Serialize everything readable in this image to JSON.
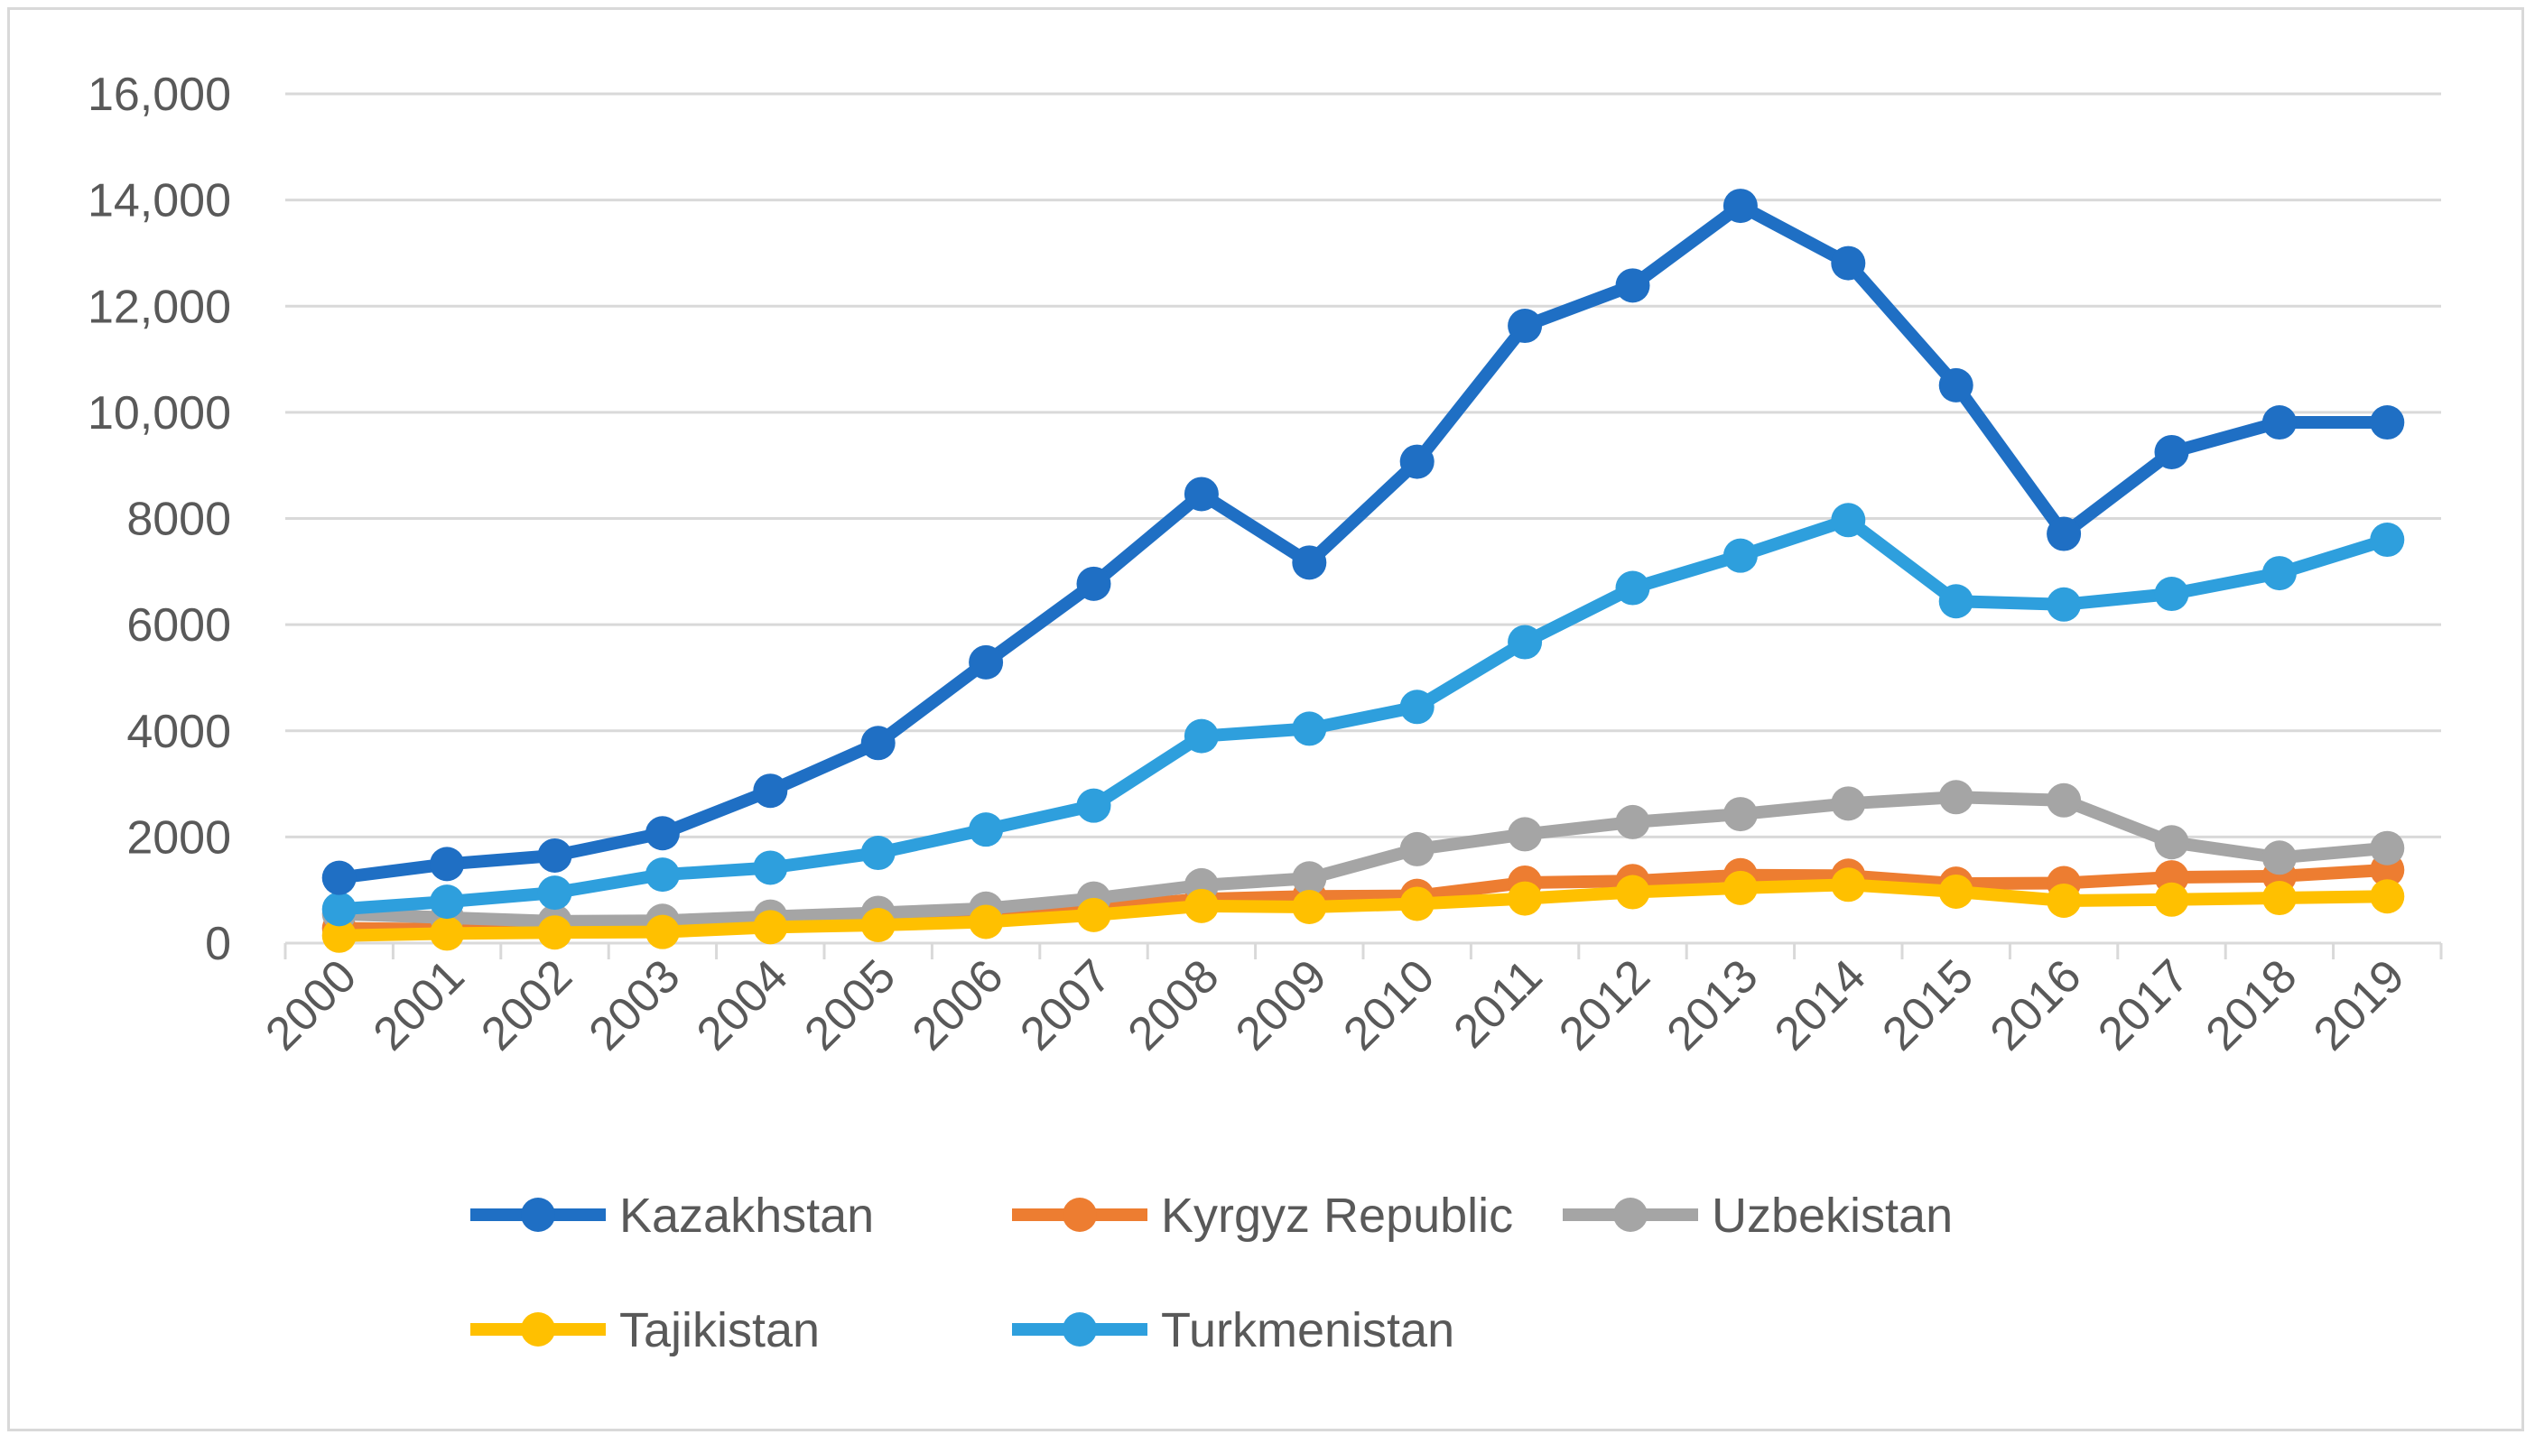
{
  "chart_data": {
    "type": "line",
    "title": "",
    "xlabel": "",
    "ylabel": "",
    "x": [
      "2000",
      "2001",
      "2002",
      "2003",
      "2004",
      "2005",
      "2006",
      "2007",
      "2008",
      "2009",
      "2010",
      "2011",
      "2012",
      "2013",
      "2014",
      "2015",
      "2016",
      "2017",
      "2018",
      "2019"
    ],
    "ylim": [
      0,
      16000
    ],
    "yticks": [
      0,
      2000,
      4000,
      6000,
      8000,
      10000,
      12000,
      14000,
      16000
    ],
    "ytick_labels": [
      "0",
      "2000",
      "4000",
      "6000",
      "8000",
      "10,000",
      "12,000",
      "14,000",
      "16,000"
    ],
    "grid": true,
    "legend_position": "bottom",
    "series": [
      {
        "name": "Kazakhstan",
        "color": "#1f6fc4",
        "values": [
          1230,
          1490,
          1650,
          2070,
          2870,
          3770,
          5290,
          6770,
          8460,
          7170,
          9070,
          11630,
          12390,
          13890,
          12810,
          10510,
          7710,
          9250,
          9810,
          9810
        ]
      },
      {
        "name": "Kyrgyz Republic",
        "color": "#ed7d31",
        "values": [
          280,
          260,
          290,
          330,
          420,
          480,
          560,
          660,
          830,
          880,
          890,
          1140,
          1170,
          1280,
          1270,
          1120,
          1130,
          1240,
          1260,
          1380
        ]
      },
      {
        "name": "Uzbekistan",
        "color": "#a5a5a5",
        "values": [
          550,
          480,
          410,
          420,
          500,
          570,
          650,
          840,
          1090,
          1220,
          1770,
          2050,
          2280,
          2430,
          2630,
          2750,
          2690,
          1900,
          1610,
          1790
        ]
      },
      {
        "name": "Tajikistan",
        "color": "#ffc000",
        "values": [
          140,
          180,
          200,
          210,
          300,
          340,
          400,
          530,
          700,
          680,
          740,
          840,
          960,
          1040,
          1100,
          970,
          800,
          820,
          850,
          880
        ]
      },
      {
        "name": "Turkmenistan",
        "color": "#2e9fdd",
        "values": [
          640,
          780,
          950,
          1290,
          1420,
          1700,
          2140,
          2590,
          3900,
          4040,
          4450,
          5670,
          6690,
          7300,
          7970,
          6440,
          6380,
          6580,
          6970,
          7600
        ]
      }
    ]
  }
}
